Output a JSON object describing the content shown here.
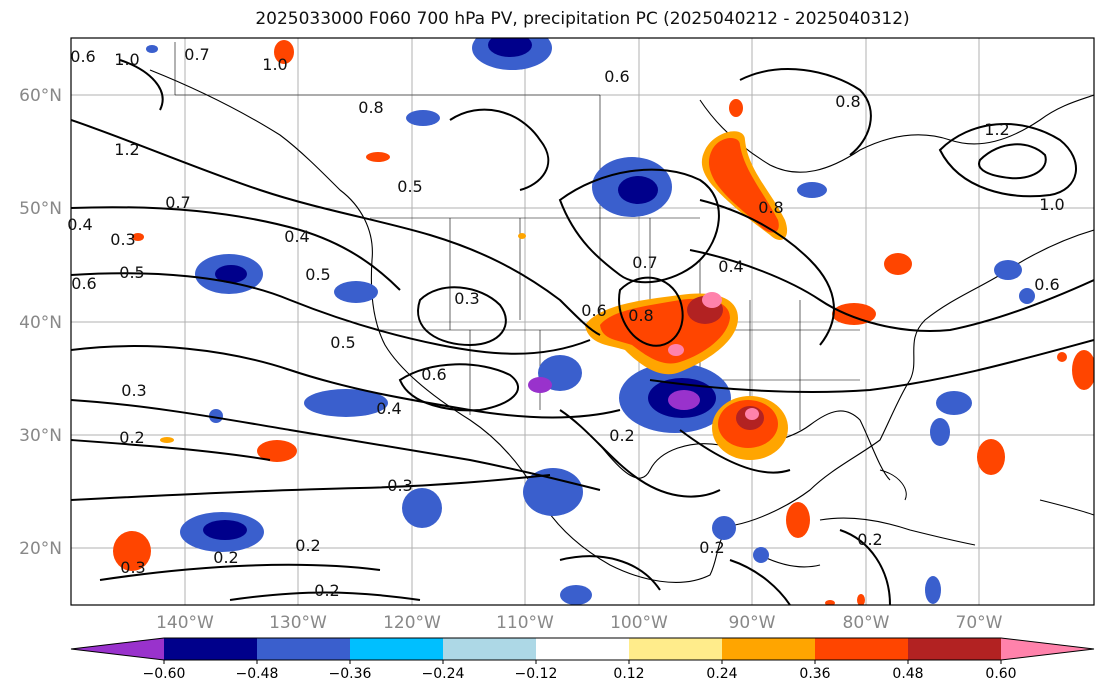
{
  "title": "2025033000 F060 700 hPa PV, precipitation PC (2025040212 - 2025040312)",
  "lat_labels": [
    "60°N",
    "50°N",
    "40°N",
    "30°N",
    "20°N"
  ],
  "lon_labels": [
    "140°W",
    "130°W",
    "120°W",
    "110°W",
    "100°W",
    "90°W",
    "80°W",
    "70°W"
  ],
  "colorbar": {
    "ticks": [
      "−0.60",
      "−0.48",
      "−0.36",
      "−0.24",
      "−0.12",
      "0.12",
      "0.24",
      "0.36",
      "0.48",
      "0.60"
    ],
    "colors": [
      "#9932cc",
      "#00008b",
      "#3a5fcd",
      "#00bfff",
      "#add8e6",
      "#ffffff",
      "#ffec8b",
      "#ffa500",
      "#ff4500",
      "#b22222",
      "#ff82ab"
    ]
  },
  "contour_labels": [
    "1.0",
    "0.7",
    "1.0",
    "0.6",
    "0.8",
    "1.2",
    "0.5",
    "0.7",
    "0.4",
    "1.2",
    "1.0",
    "0.3",
    "0.5",
    "0.6",
    "0.5",
    "0.3",
    "0.5",
    "0.8",
    "0.7",
    "0.6",
    "0.4",
    "0.8",
    "0.6",
    "0.3",
    "0.4",
    "0.6",
    "0.2",
    "0.2",
    "0.3",
    "0.2",
    "0.2",
    "0.3",
    "0.2",
    "0.2",
    "0.2",
    "0.6",
    "0.8",
    "0.4"
  ]
}
